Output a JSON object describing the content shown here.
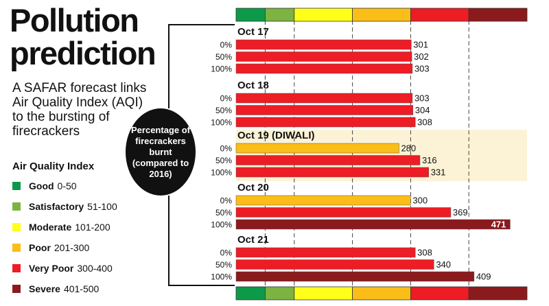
{
  "headline": "Pollution prediction",
  "subtitle": "A SAFAR forecast links Air Quality Index (AQI) to the bursting of firecrackers",
  "legend_title": "Air Quality Index",
  "legend": [
    {
      "name": "Good",
      "range": "0-50",
      "color": "#0d9a48"
    },
    {
      "name": "Satisfactory",
      "range": "51-100",
      "color": "#7cb342"
    },
    {
      "name": "Moderate",
      "range": "101-200",
      "color": "#ffff1a"
    },
    {
      "name": "Poor",
      "range": "201-300",
      "color": "#fbbd18"
    },
    {
      "name": "Very Poor",
      "range": "300-400",
      "color": "#ee1c25"
    },
    {
      "name": "Severe",
      "range": "401-500",
      "color": "#8b1a1d"
    }
  ],
  "circle_label": "Percentage of firecrackers burnt (compared to 2016)",
  "chart_data": {
    "type": "bar",
    "orientation": "horizontal",
    "xlim": [
      0,
      500
    ],
    "band_boundaries": [
      0,
      50,
      100,
      200,
      300,
      400,
      500
    ],
    "groups": [
      {
        "label": "Oct 17",
        "highlight": false,
        "bars": [
          {
            "pct": "0%",
            "value": 301
          },
          {
            "pct": "50%",
            "value": 302
          },
          {
            "pct": "100%",
            "value": 303
          }
        ]
      },
      {
        "label": "Oct 18",
        "highlight": false,
        "bars": [
          {
            "pct": "0%",
            "value": 303
          },
          {
            "pct": "50%",
            "value": 304
          },
          {
            "pct": "100%",
            "value": 308
          }
        ]
      },
      {
        "label": "Oct 19 (DIWALI)",
        "highlight": true,
        "bars": [
          {
            "pct": "0%",
            "value": 280
          },
          {
            "pct": "50%",
            "value": 316
          },
          {
            "pct": "100%",
            "value": 331
          }
        ]
      },
      {
        "label": "Oct 20",
        "highlight": false,
        "bars": [
          {
            "pct": "0%",
            "value": 300
          },
          {
            "pct": "50%",
            "value": 369
          },
          {
            "pct": "100%",
            "value": 471
          }
        ]
      },
      {
        "label": "Oct 21",
        "highlight": false,
        "bars": [
          {
            "pct": "0%",
            "value": 308
          },
          {
            "pct": "50%",
            "value": 340
          },
          {
            "pct": "100%",
            "value": 409
          }
        ]
      }
    ]
  }
}
